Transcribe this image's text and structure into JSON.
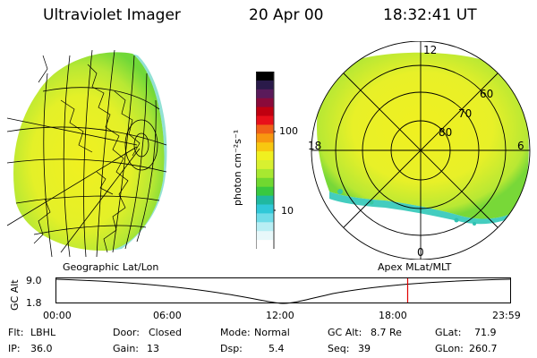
{
  "header": {
    "instrument": "Ultraviolet Imager",
    "date": "20 Apr 00",
    "time": "18:32:41 UT"
  },
  "colorbar": {
    "unit_label": "photon cm⁻²s⁻¹",
    "ticks": [
      "100",
      "10"
    ],
    "colors": [
      "#000000",
      "#2a1a4a",
      "#5a1a5a",
      "#8a0a3a",
      "#c00010",
      "#e8101a",
      "#f06018",
      "#f89810",
      "#f8c810",
      "#f0f020",
      "#d8f030",
      "#a8e830",
      "#70d830",
      "#38c840",
      "#20b8a0",
      "#30c8d8",
      "#70dce8",
      "#b8eef4",
      "#e8f8fa",
      "#ffffff"
    ]
  },
  "left_panel": {
    "caption": "Geographic Lat/Lon"
  },
  "right_panel": {
    "caption": "Apex MLat/MLT",
    "mlt_labels": {
      "top": "12",
      "left": "18",
      "right": "6",
      "bottom": "0"
    },
    "mlat_labels": [
      "60",
      "70",
      "80"
    ]
  },
  "altitude_plot": {
    "y_axis_title": "GC Alt",
    "y_ticks": [
      "9.0",
      "1.8"
    ],
    "x_ticks": [
      "00:00",
      "06:00",
      "12:00",
      "18:00",
      "23:59"
    ],
    "current_time_fraction": 0.7726,
    "marker_color": "#e00000"
  },
  "info": {
    "filter": {
      "label": "Flt:",
      "value": "LBHL"
    },
    "ip": {
      "label": "IP:",
      "value": "36.0"
    },
    "door": {
      "label": "Door:",
      "value": "Closed"
    },
    "gain": {
      "label": "Gain:",
      "value": "13"
    },
    "mode": {
      "label": "Mode:",
      "value": "Normal"
    },
    "dsp": {
      "label": "Dsp:",
      "value": "5.4"
    },
    "gc_alt": {
      "label": "GC Alt:",
      "value": "8.7 Re"
    },
    "seq": {
      "label": "Seq:",
      "value": "39"
    },
    "glat": {
      "label": "GLat:",
      "value": "71.9"
    },
    "glon": {
      "label": "GLon:",
      "value": "260.7"
    }
  }
}
